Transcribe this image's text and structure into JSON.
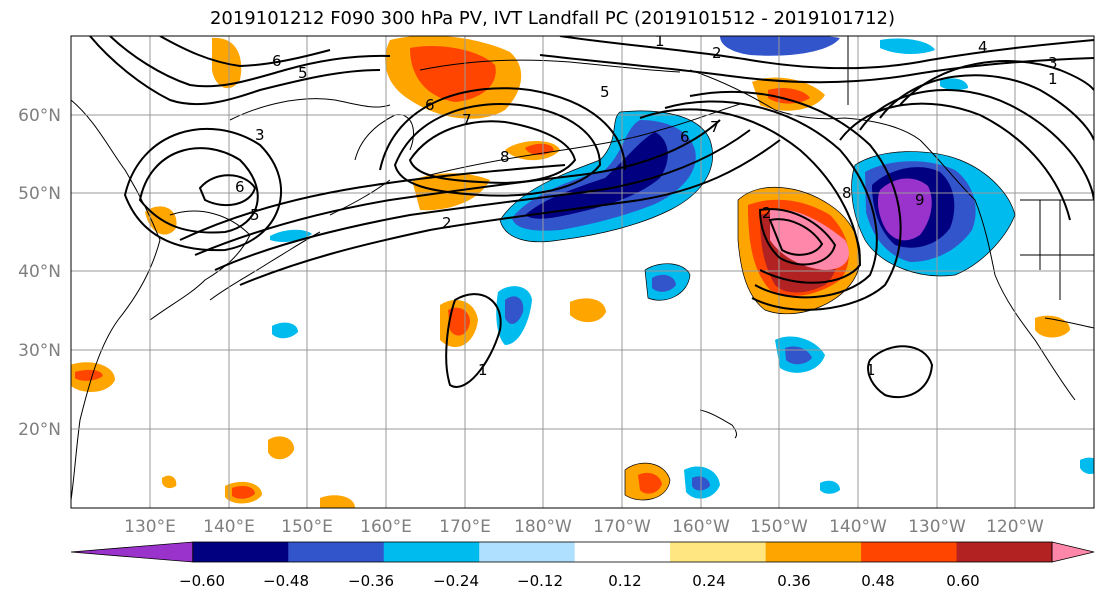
{
  "title": "2019101212 F090 300 hPa PV, IVT Landfall PC (2019101512 - 2019101712)",
  "map": {
    "lat_ticks": [
      "60°N",
      "50°N",
      "40°N",
      "30°N",
      "20°N"
    ],
    "lon_ticks": [
      "130°E",
      "140°E",
      "150°E",
      "160°E",
      "170°E",
      "180°W",
      "170°W",
      "160°W",
      "150°W",
      "140°W",
      "130°W",
      "120°W"
    ],
    "extent": {
      "lon_min": 120,
      "lon_max": 250,
      "lat_min": 10,
      "lat_max": 70
    },
    "contour_labels": [
      "6",
      "5",
      "7",
      "2",
      "5",
      "6",
      "1",
      "2",
      "4",
      "3",
      "1",
      "6",
      "7",
      "8",
      "6",
      "5",
      "8",
      "9",
      "3",
      "2",
      "1",
      "1"
    ]
  },
  "colorbar": {
    "ticks": [
      "−0.60",
      "−0.48",
      "−0.36",
      "−0.24",
      "−0.12",
      "0.12",
      "0.24",
      "0.36",
      "0.48",
      "0.60"
    ],
    "bins": [
      "#9933cc",
      "#000080",
      "#3355cc",
      "#00bbee",
      "#b0e0ff",
      "#ffffff",
      "#ffe680",
      "#ffa500",
      "#ff4500",
      "#b22222",
      "#ff88aa"
    ]
  }
}
